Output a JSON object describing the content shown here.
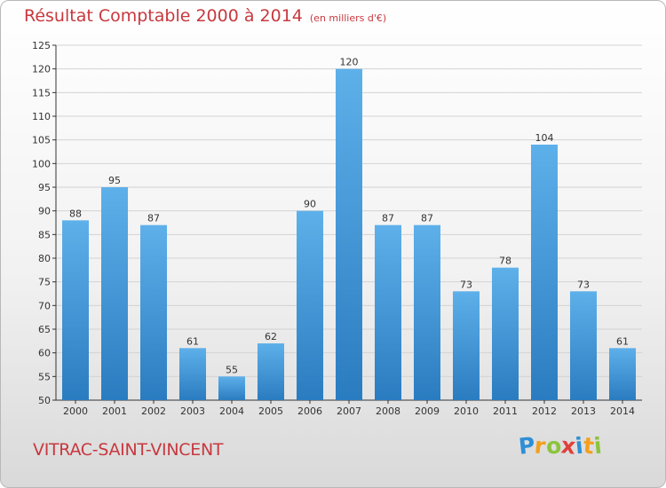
{
  "header": {
    "title": "Résultat Comptable 2000 à 2014",
    "unit": "(en milliers d'€)"
  },
  "footer": {
    "commune": "VITRAC-SAINT-VINCENT",
    "brand": "Proxiti",
    "brand_letters": [
      {
        "ch": "P",
        "color": "#2e8fd6"
      },
      {
        "ch": "r",
        "color": "#f2a01e"
      },
      {
        "ch": "o",
        "color": "#8cc43c"
      },
      {
        "ch": "x",
        "color": "#e0413a"
      },
      {
        "ch": "i",
        "color": "#2e8fd6"
      },
      {
        "ch": "t",
        "color": "#f2a01e"
      },
      {
        "ch": "i",
        "color": "#8cc43c"
      }
    ]
  },
  "colors": {
    "title": "#c8383e",
    "bar_top": "#5eb0ea",
    "bar_bottom": "#2a7cc0",
    "grid": "#d3d3d3",
    "axis": "#333333"
  },
  "chart_data": {
    "type": "bar",
    "title": "Résultat Comptable 2000 à 2014",
    "subtitle": "(en milliers d'€)",
    "xlabel": "",
    "ylabel": "",
    "categories": [
      "2000",
      "2001",
      "2002",
      "2003",
      "2004",
      "2005",
      "2006",
      "2007",
      "2008",
      "2009",
      "2010",
      "2011",
      "2012",
      "2013",
      "2014"
    ],
    "values": [
      88,
      95,
      87,
      61,
      55,
      62,
      90,
      120,
      87,
      87,
      73,
      78,
      104,
      73,
      61
    ],
    "ylim": [
      50,
      125
    ],
    "yticks": [
      50,
      55,
      60,
      65,
      70,
      75,
      80,
      85,
      90,
      95,
      100,
      105,
      110,
      115,
      120,
      125
    ],
    "grid": true,
    "legend": "none"
  }
}
